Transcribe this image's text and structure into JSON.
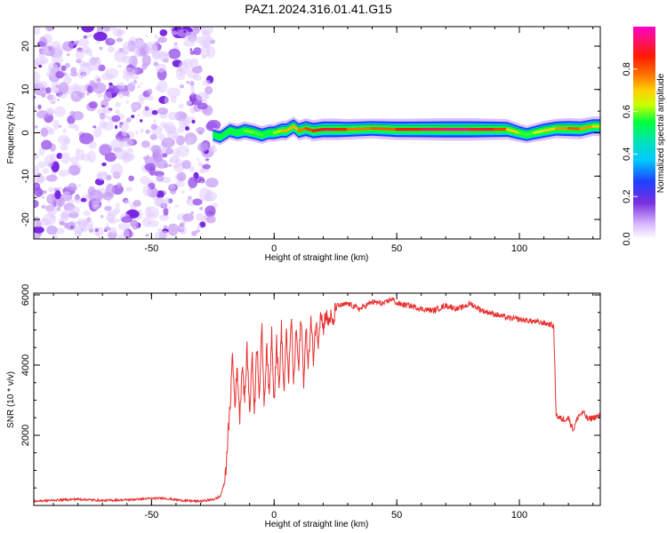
{
  "title": "PAZ1.2024.316.01.41.G15",
  "colors": {
    "snr_line": "#e8302f",
    "spectrogram_noise": "#7b2fe0",
    "spectrogram_signal_core": "#ff2a00",
    "frame": "#000000"
  },
  "chart_data": [
    {
      "type": "heatmap",
      "name": "spectrogram",
      "xlabel": "Height of straight line (km)",
      "ylabel": "Frequency (Hz)",
      "xlim": [
        -98,
        133
      ],
      "ylim": [
        -24.5,
        24.5
      ],
      "xticks": [
        -50,
        0,
        50,
        100
      ],
      "yticks": [
        -20,
        -10,
        0,
        10,
        20
      ],
      "xtick_labels": [
        "-50",
        "0",
        "50",
        "100"
      ],
      "ytick_labels": [
        "-20",
        "-10",
        "0",
        "10",
        "20"
      ],
      "noise_region_x": [
        -98,
        -25
      ],
      "signal_trace": {
        "x": [
          -25,
          -22,
          -18,
          -15,
          -12,
          -8,
          -5,
          -2,
          0,
          3,
          5,
          8,
          10,
          13,
          16,
          20,
          25,
          30,
          40,
          50,
          60,
          70,
          80,
          90,
          95,
          100,
          103,
          106,
          110,
          115,
          120,
          125,
          130,
          133
        ],
        "freq": [
          -0.5,
          -1,
          0.5,
          0,
          0.5,
          0,
          -0.5,
          0,
          0,
          0.5,
          0.5,
          1.5,
          0.5,
          1,
          0.5,
          0.8,
          0.8,
          0.8,
          1,
          0.8,
          0.8,
          0.8,
          0.8,
          0.8,
          0.8,
          0,
          -0.4,
          0,
          0.5,
          1,
          1,
          0.9,
          1.5,
          1.5
        ],
        "amplitude": [
          0.3,
          0.4,
          0.5,
          0.5,
          0.6,
          0.6,
          0.55,
          0.5,
          0.55,
          0.7,
          0.75,
          0.7,
          0.75,
          0.8,
          0.85,
          0.9,
          0.9,
          0.8,
          0.75,
          0.85,
          0.9,
          0.95,
          0.95,
          0.85,
          0.8,
          0.6,
          0.55,
          0.6,
          0.7,
          0.7,
          0.8,
          0.8,
          0.7,
          0.7
        ]
      },
      "colorbar": {
        "label": "Normalized spectral amplitude",
        "range": [
          0,
          1
        ],
        "ticks": [
          0.0,
          0.2,
          0.4,
          0.6,
          0.8
        ],
        "tick_labels": [
          "0.0",
          "0.2",
          "0.4",
          "0.6",
          "0.8"
        ]
      }
    },
    {
      "type": "line",
      "name": "snr",
      "xlabel": "Height of straight line (km)",
      "ylabel": "SNR (10 * v/v)",
      "xlim": [
        -98,
        133
      ],
      "ylim": [
        0,
        6050
      ],
      "xticks": [
        -50,
        0,
        50,
        100
      ],
      "yticks": [
        2000,
        4000,
        6000
      ],
      "xtick_labels": [
        "-50",
        "0",
        "50",
        "100"
      ],
      "ytick_labels": [
        "2000",
        "4000",
        "6000"
      ],
      "series": [
        {
          "x": [
            -98,
            -90,
            -80,
            -70,
            -60,
            -50,
            -45,
            -40,
            -35,
            -30,
            -25,
            -22,
            -20,
            -19,
            -18,
            -17,
            -16,
            -15,
            -14,
            -13,
            -12,
            -11,
            -10,
            -9,
            -8,
            -7,
            -6,
            -5,
            -4,
            -3,
            -2,
            -1,
            0,
            1,
            2,
            3,
            4,
            5,
            6,
            7,
            8,
            9,
            10,
            11,
            12,
            13,
            14,
            15,
            16,
            17,
            18,
            19,
            20,
            21,
            22,
            23,
            24,
            25,
            26,
            28,
            30,
            35,
            40,
            45,
            48,
            50,
            55,
            60,
            65,
            70,
            75,
            80,
            85,
            90,
            95,
            100,
            105,
            110,
            113,
            114,
            115,
            116,
            118,
            120,
            122,
            124,
            126,
            128,
            130,
            133
          ],
          "y": [
            120,
            150,
            180,
            140,
            160,
            200,
            210,
            160,
            130,
            120,
            170,
            250,
            700,
            1800,
            2700,
            4300,
            2900,
            3900,
            2500,
            4100,
            3000,
            4500,
            2600,
            4300,
            2700,
            4700,
            3100,
            5100,
            2800,
            4700,
            3000,
            5000,
            3000,
            4700,
            3300,
            5100,
            3200,
            4900,
            3600,
            5400,
            3400,
            5100,
            3800,
            5500,
            3500,
            5000,
            4000,
            5300,
            4200,
            5200,
            4700,
            5600,
            5000,
            5500,
            5200,
            5400,
            5100,
            5600,
            5700,
            5700,
            5750,
            5600,
            5800,
            5750,
            5900,
            5750,
            5700,
            5600,
            5550,
            5700,
            5600,
            5750,
            5550,
            5450,
            5350,
            5300,
            5250,
            5200,
            5150,
            5100,
            2600,
            2500,
            2450,
            2500,
            2150,
            2550,
            2650,
            2450,
            2500,
            2550
          ]
        }
      ]
    }
  ]
}
